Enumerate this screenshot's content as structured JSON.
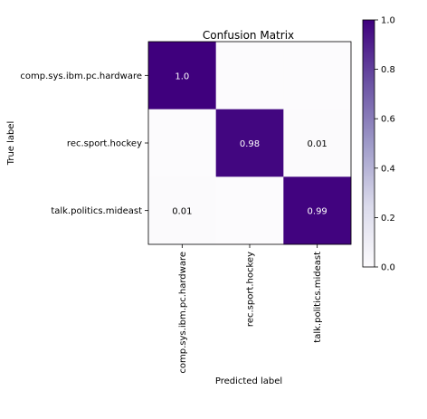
{
  "chart_data": {
    "type": "heatmap",
    "title": "Confusion Matrix",
    "xlabel": "Predicted label",
    "ylabel": "True label",
    "x_categories": [
      "comp.sys.ibm.pc.hardware",
      "rec.sport.hockey",
      "talk.politics.mideast"
    ],
    "y_categories": [
      "comp.sys.ibm.pc.hardware",
      "rec.sport.hockey",
      "talk.politics.mideast"
    ],
    "values": [
      [
        1.0,
        0.0,
        0.0
      ],
      [
        0.0,
        0.98,
        0.01
      ],
      [
        0.01,
        0.0,
        0.99
      ]
    ],
    "cell_labels": [
      [
        "1.0",
        "",
        ""
      ],
      [
        "",
        "0.98",
        "0.01"
      ],
      [
        "0.01",
        "",
        "0.99"
      ]
    ],
    "colorbar": {
      "range": [
        0.0,
        1.0
      ],
      "ticks": [
        0.0,
        0.2,
        0.4,
        0.6,
        0.8,
        1.0
      ],
      "tick_labels": [
        "0.0",
        "0.2",
        "0.4",
        "0.6",
        "0.8",
        "1.0"
      ],
      "colormap": "Purples"
    },
    "grid": false
  }
}
